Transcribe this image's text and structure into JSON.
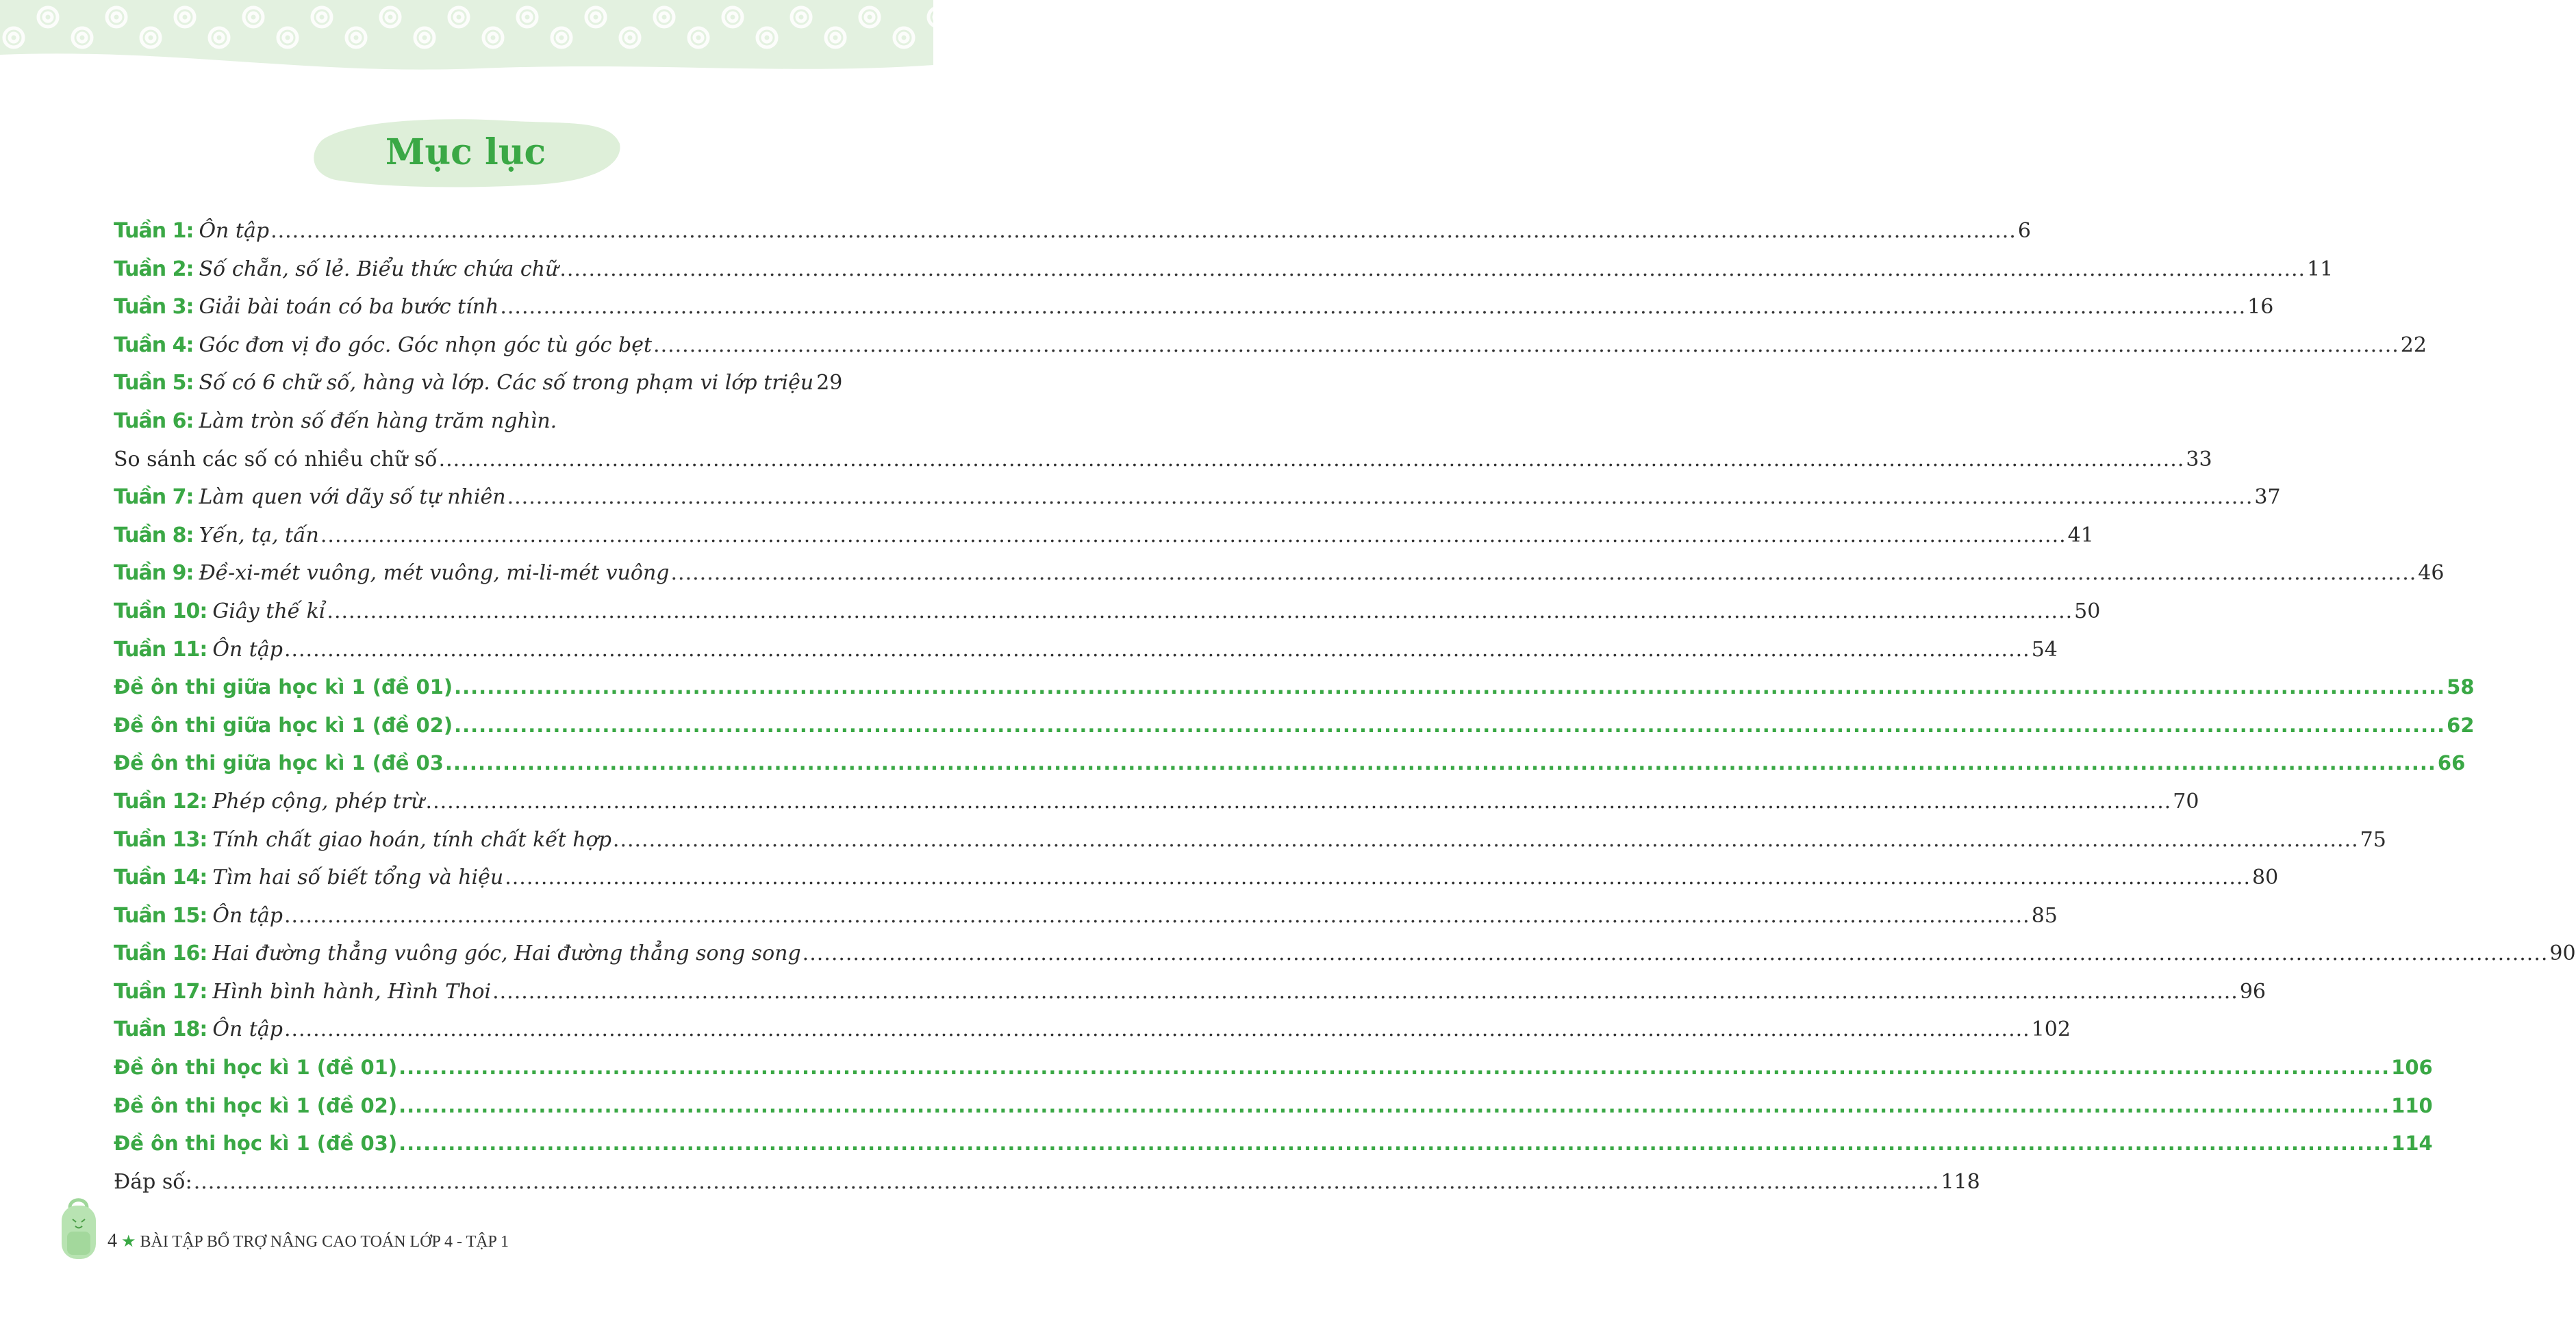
{
  "title": "Mục lục",
  "colors": {
    "accent": "#3aa845",
    "band": "#e3f1e0"
  },
  "entries": [
    {
      "label": "Tuần 1:",
      "text": "Ôn tập",
      "page": "6"
    },
    {
      "label": "Tuần 2:",
      "text": "Số chẵn, số lẻ. Biểu thức chứa chữ",
      "page": "11"
    },
    {
      "label": "Tuần 3:",
      "text": "Giải bài toán có ba bước tính",
      "page": "16"
    },
    {
      "label": "Tuần 4:",
      "text": "Góc đơn vị đo góc. Góc nhọn góc tù góc bẹt",
      "page": "22"
    },
    {
      "label": "Tuần 5:",
      "text": "Số có 6 chữ số, hàng và lớp. Các số trong phạm vi lớp triệu",
      "page": "29"
    },
    {
      "label": "Tuần 6:",
      "text": "Làm tròn số đến hàng trăm nghìn.",
      "page": ""
    },
    {
      "label": "",
      "text": "So sánh các số có nhiều chữ số",
      "page": "33"
    },
    {
      "label": "Tuần 7:",
      "text": "Làm quen với dãy số tự nhiên",
      "page": "37"
    },
    {
      "label": "Tuần 8:",
      "text": "Yến, tạ, tấn",
      "page": "41"
    },
    {
      "label": "Tuần 9:",
      "text": "Đề-xi-mét vuông, mét vuông, mi-li-mét vuông",
      "page": "46"
    },
    {
      "label": "Tuần 10:",
      "text": "Giây thế kỉ",
      "page": "50"
    },
    {
      "label": "Tuần 11:",
      "text": "Ôn tập",
      "page": "54"
    },
    {
      "exam": true,
      "text": "Đề ôn thi giữa học kì 1 (đề 01)",
      "page": "58"
    },
    {
      "exam": true,
      "text": "Đề ôn thi giữa học kì 1 (đề 02)",
      "page": "62"
    },
    {
      "exam": true,
      "text": "Đề ôn thi giữa học kì 1 (đề 03",
      "page": "66"
    },
    {
      "label": "Tuần 12:",
      "text": "Phép cộng, phép trừ",
      "page": "70"
    },
    {
      "label": "Tuần 13:",
      "text": "Tính chất giao hoán, tính chất kết hợp",
      "page": "75"
    },
    {
      "label": "Tuần 14:",
      "text": "Tìm hai số biết tổng và hiệu",
      "page": "80"
    },
    {
      "label": "Tuần 15:",
      "text": "Ôn tập",
      "page": "85"
    },
    {
      "label": "Tuần 16:",
      "text": "Hai đường thẳng vuông góc, Hai đường thẳng song song",
      "page": "90"
    },
    {
      "label": "Tuần 17:",
      "text": "Hình bình hành, Hình Thoi",
      "page": "96"
    },
    {
      "label": "Tuần 18:",
      "text": "Ôn tập",
      "page": "102"
    },
    {
      "exam": true,
      "text": "Đề ôn thi học kì 1 (đề 01)",
      "page": "106"
    },
    {
      "exam": true,
      "text": "Đề ôn thi học kì 1 (đề 02)",
      "page": "110"
    },
    {
      "exam": true,
      "text": "Đề ôn thi học kì 1 (đề 03)",
      "page": "114"
    },
    {
      "label": "",
      "text": "Đáp số:",
      "page": "118"
    }
  ],
  "footer": {
    "page_number": "4",
    "star": "★",
    "book_title": "BÀI TẬP BỔ TRỢ NÂNG CAO TOÁN LỚP 4 - TẬP 1",
    "mascot_icon": "backpack-mascot-icon"
  }
}
